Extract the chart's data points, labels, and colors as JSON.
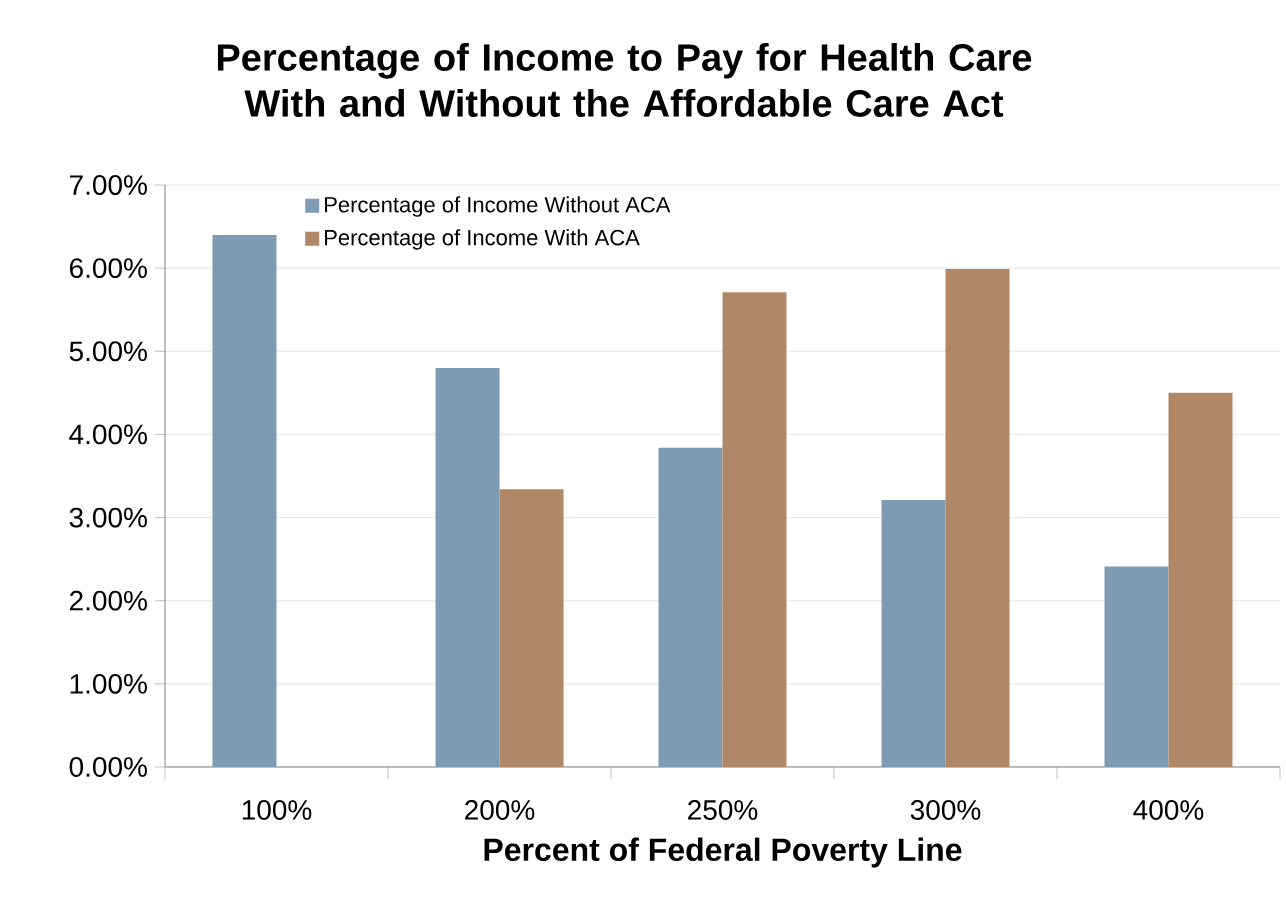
{
  "chart_data": {
    "type": "bar",
    "title": "Percentage of Income to Pay for Health Care With and Without the Affordable Care Act",
    "xlabel": "Percent of Federal Poverty Line",
    "categories": [
      "100%",
      "200%",
      "250%",
      "300%",
      "400%"
    ],
    "series": [
      {
        "name": "Percentage of Income Without ACA",
        "color": "#7f9bb3",
        "values": [
          6.4,
          4.8,
          3.84,
          3.21,
          2.41
        ]
      },
      {
        "name": "Percentage of Income With ACA",
        "color": "#b08868",
        "values": [
          null,
          3.34,
          5.71,
          5.99,
          4.5
        ]
      }
    ],
    "ylim": [
      0,
      7
    ],
    "yticks": [
      {
        "value": 0,
        "label": "0.00%"
      },
      {
        "value": 1,
        "label": "1.00%"
      },
      {
        "value": 2,
        "label": "2.00%"
      },
      {
        "value": 3,
        "label": "3.00%"
      },
      {
        "value": 4,
        "label": "4.00%"
      },
      {
        "value": 5,
        "label": "5.00%"
      },
      {
        "value": 6,
        "label": "6.00%"
      },
      {
        "value": 7,
        "label": "7.00%"
      }
    ],
    "grid": "y",
    "legend": "top left"
  }
}
